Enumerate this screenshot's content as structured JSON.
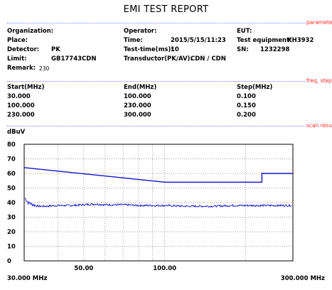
{
  "title": "EMI TEST REPORT",
  "sections": {
    "parameter": "parameter",
    "freq_step": "freq, step",
    "scan_result": "scan result"
  },
  "params": {
    "organization_label": "Organization:",
    "organization": "",
    "place_label": "Place:",
    "place": "",
    "detector_label": "Detector:",
    "detector": "PK",
    "limit_label": "Limit:",
    "limit": "GB17743CDN",
    "remark_label": "Remark:",
    "remark": "230",
    "operator_label": "Operator:",
    "operator": "",
    "time_label": "Time:",
    "time": "2015/5/15/11:23",
    "testtime_label": "Test-time(ms):",
    "testtime": "10",
    "transductor_label": "Transductor(PK/AV):",
    "transductor": "CDN  /  CDN",
    "eut_label": "EUT:",
    "eut": "",
    "equipment_label": "Test equipment:",
    "equipment": "KH3932",
    "sn_label": "SN:",
    "sn": "1232298"
  },
  "freq_table": {
    "headers": [
      "Start(MHz)",
      "End(MHz)",
      "Step(MHz)"
    ],
    "rows": [
      [
        "30.000",
        "100.000",
        "0.100"
      ],
      [
        "100.000",
        "230.000",
        "0.150"
      ],
      [
        "230.000",
        "300.000",
        "0.200"
      ]
    ]
  },
  "colors": {
    "trace": "#1414c8",
    "section": "#ff2a2a",
    "grid": "#7f7f7f"
  },
  "chart_data": {
    "type": "line",
    "title": "",
    "ylabel": "dBuV",
    "xlabel": "",
    "x_scale": "log",
    "xlim": [
      30,
      300
    ],
    "ylim": [
      0,
      80
    ],
    "yticks": [
      0,
      10,
      20,
      30,
      40,
      50,
      60,
      70,
      80
    ],
    "xtick_labels": [
      {
        "value": 30,
        "label": "30.000 MHz"
      },
      {
        "value": 50,
        "label": "50.00"
      },
      {
        "value": 100,
        "label": "100.00"
      },
      {
        "value": 300,
        "label": "300.000 MHz"
      }
    ],
    "x_gridlines": [
      40,
      50,
      60,
      70,
      80,
      90,
      100,
      200
    ],
    "grid": true,
    "series": [
      {
        "kind": "limit",
        "x": [
          30,
          100,
          230,
          230,
          300
        ],
        "y": [
          64,
          54,
          54,
          60,
          60
        ]
      },
      {
        "kind": "measurement",
        "x": [
          30,
          31,
          32,
          33,
          34,
          36,
          40,
          45,
          50,
          55,
          60,
          70,
          80,
          90,
          100,
          120,
          150,
          180,
          200,
          230,
          260,
          300
        ],
        "y": [
          44,
          40,
          39,
          38,
          37.5,
          37.5,
          38,
          38,
          38.5,
          39,
          38.5,
          38.5,
          38,
          38,
          38,
          37.5,
          37.5,
          38,
          38,
          38,
          38,
          38
        ]
      }
    ]
  }
}
